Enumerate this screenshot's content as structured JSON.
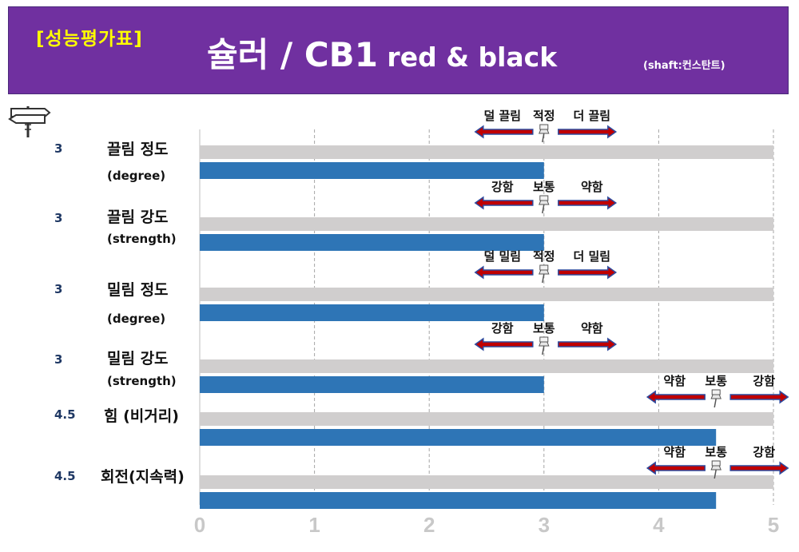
{
  "header": {
    "tag": "[성능평가표]",
    "title_main": "슐러 / CB1",
    "title_sub": " red & black",
    "shaft": "(shaft:컨스탄트)"
  },
  "colors": {
    "header_bg": "#7030a0",
    "tag": "#ffff00",
    "bar_value": "#2e75b6",
    "bar_track": "#d0cece",
    "arrow_fill": "#c00000",
    "arrow_edge": "#2e4a9e"
  },
  "chart_data": {
    "type": "bar",
    "orientation": "horizontal",
    "xlim": [
      0,
      5
    ],
    "x_ticks": [
      "0",
      "1",
      "2",
      "3",
      "4",
      "5"
    ],
    "grid": true,
    "rows": [
      {
        "label": "끌림 정도",
        "sublabel": "(degree)",
        "value": 3,
        "value_text": "3",
        "marker": 3,
        "scale": [
          "덜 끌림",
          "적정",
          "더 끌림"
        ]
      },
      {
        "label": "끌림 강도",
        "sublabel": "(strength)",
        "value": 3,
        "value_text": "3",
        "marker": 3,
        "scale": [
          "강함",
          "보통",
          "약함"
        ]
      },
      {
        "label": "밀림 정도",
        "sublabel": "(degree)",
        "value": 3,
        "value_text": "3",
        "marker": 3,
        "scale": [
          "덜 밀림",
          "적정",
          "더 밀림"
        ]
      },
      {
        "label": "밀림 강도",
        "sublabel": "(strength)",
        "value": 3,
        "value_text": "3",
        "marker": 3,
        "scale": [
          "강함",
          "보통",
          "약함"
        ]
      },
      {
        "label": "힘 (비거리)",
        "sublabel": "",
        "value": 4.5,
        "value_text": "4.5",
        "marker": 4.5,
        "scale": [
          "약함",
          "보통",
          "강함"
        ]
      },
      {
        "label": "회전(지속력)",
        "sublabel": "",
        "value": 4.5,
        "value_text": "4.5",
        "marker": 4.5,
        "scale": [
          "약함",
          "보통",
          "강함"
        ]
      }
    ]
  }
}
